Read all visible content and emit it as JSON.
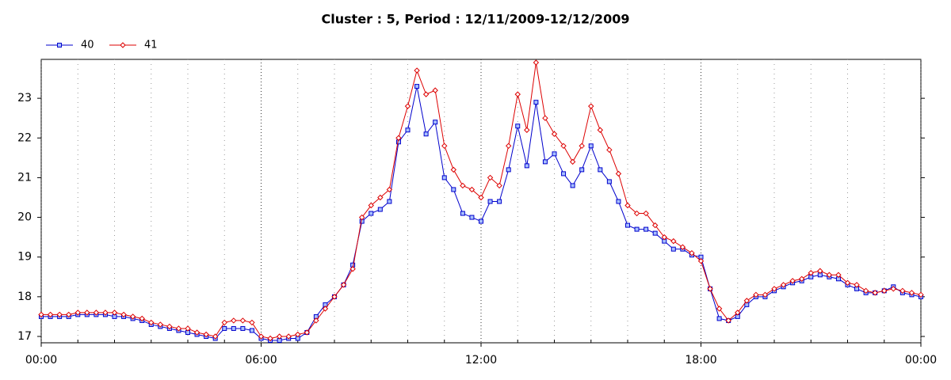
{
  "chart_data": {
    "type": "line",
    "title": "Cluster : 5, Period : 12/11/2009-12/12/2009",
    "x": [
      0,
      0.25,
      0.5,
      0.75,
      1,
      1.25,
      1.5,
      1.75,
      2,
      2.25,
      2.5,
      2.75,
      3,
      3.25,
      3.5,
      3.75,
      4,
      4.25,
      4.5,
      4.75,
      5,
      5.25,
      5.5,
      5.75,
      6,
      6.25,
      6.5,
      6.75,
      7,
      7.25,
      7.5,
      7.75,
      8,
      8.25,
      8.5,
      8.75,
      9,
      9.25,
      9.5,
      9.75,
      10,
      10.25,
      10.5,
      10.75,
      11,
      11.25,
      11.5,
      11.75,
      12,
      12.25,
      12.5,
      12.75,
      13,
      13.25,
      13.5,
      13.75,
      14,
      14.25,
      14.5,
      14.75,
      15,
      15.25,
      15.5,
      15.75,
      16,
      16.25,
      16.5,
      16.75,
      17,
      17.25,
      17.5,
      17.75,
      18,
      18.25,
      18.5,
      18.75,
      19,
      19.25,
      19.5,
      19.75,
      20,
      20.25,
      20.5,
      20.75,
      21,
      21.25,
      21.5,
      21.75,
      22,
      22.25,
      22.5,
      22.75,
      23,
      23.25,
      23.5,
      23.75,
      24
    ],
    "series": [
      {
        "name": "40",
        "color": "#0000cc",
        "marker": "square",
        "values": [
          17.5,
          17.5,
          17.5,
          17.5,
          17.55,
          17.55,
          17.55,
          17.55,
          17.5,
          17.5,
          17.45,
          17.4,
          17.3,
          17.25,
          17.2,
          17.15,
          17.1,
          17.05,
          17.0,
          16.95,
          17.2,
          17.2,
          17.2,
          17.15,
          16.95,
          16.9,
          16.9,
          16.95,
          16.95,
          17.1,
          17.5,
          17.8,
          18.0,
          18.3,
          18.8,
          19.9,
          20.1,
          20.2,
          20.4,
          21.9,
          22.2,
          23.3,
          22.1,
          22.4,
          21.0,
          20.7,
          20.1,
          20.0,
          19.9,
          20.4,
          20.4,
          21.2,
          22.3,
          21.3,
          22.9,
          21.4,
          21.6,
          21.1,
          20.8,
          21.2,
          21.8,
          21.2,
          20.9,
          20.4,
          19.8,
          19.7,
          19.7,
          19.6,
          19.4,
          19.2,
          19.2,
          19.05,
          19.0,
          18.2,
          17.45,
          17.4,
          17.5,
          17.8,
          18.0,
          18.0,
          18.15,
          18.25,
          18.35,
          18.4,
          18.5,
          18.55,
          18.5,
          18.45,
          18.3,
          18.2,
          18.1,
          18.1,
          18.15,
          18.25,
          18.1,
          18.05,
          18.0
        ]
      },
      {
        "name": "41",
        "color": "#dd0000",
        "marker": "diamond",
        "values": [
          17.55,
          17.55,
          17.55,
          17.55,
          17.6,
          17.6,
          17.6,
          17.6,
          17.6,
          17.55,
          17.5,
          17.45,
          17.35,
          17.3,
          17.25,
          17.2,
          17.2,
          17.1,
          17.05,
          17.0,
          17.35,
          17.4,
          17.4,
          17.35,
          17.0,
          16.95,
          17.0,
          17.0,
          17.05,
          17.1,
          17.4,
          17.7,
          18.0,
          18.3,
          18.7,
          20.0,
          20.3,
          20.5,
          20.7,
          22.0,
          22.8,
          23.7,
          23.1,
          23.2,
          21.8,
          21.2,
          20.8,
          20.7,
          20.5,
          21.0,
          20.8,
          21.8,
          23.1,
          22.2,
          23.9,
          22.5,
          22.1,
          21.8,
          21.4,
          21.8,
          22.8,
          22.2,
          21.7,
          21.1,
          20.3,
          20.1,
          20.1,
          19.8,
          19.5,
          19.4,
          19.25,
          19.1,
          18.9,
          18.2,
          17.7,
          17.4,
          17.6,
          17.9,
          18.05,
          18.05,
          18.2,
          18.3,
          18.4,
          18.45,
          18.6,
          18.65,
          18.55,
          18.55,
          18.35,
          18.3,
          18.15,
          18.1,
          18.15,
          18.2,
          18.15,
          18.1,
          18.05
        ]
      }
    ],
    "xlim": [
      0,
      24
    ],
    "xticks": [
      {
        "value": 0,
        "label": "00:00"
      },
      {
        "value": 6,
        "label": "06:00"
      },
      {
        "value": 12,
        "label": "12:00"
      },
      {
        "value": 18,
        "label": "18:00"
      },
      {
        "value": 24,
        "label": "00:00"
      }
    ],
    "x_minor_ticks": [
      1,
      2,
      3,
      4,
      5,
      7,
      8,
      9,
      10,
      11,
      13,
      14,
      15,
      16,
      17,
      19,
      20,
      21,
      22,
      23
    ],
    "ylim": [
      16.84,
      23.98
    ],
    "yticks": [
      17,
      18,
      19,
      20,
      21,
      22,
      23
    ],
    "grid": true,
    "legend": "top-left"
  }
}
